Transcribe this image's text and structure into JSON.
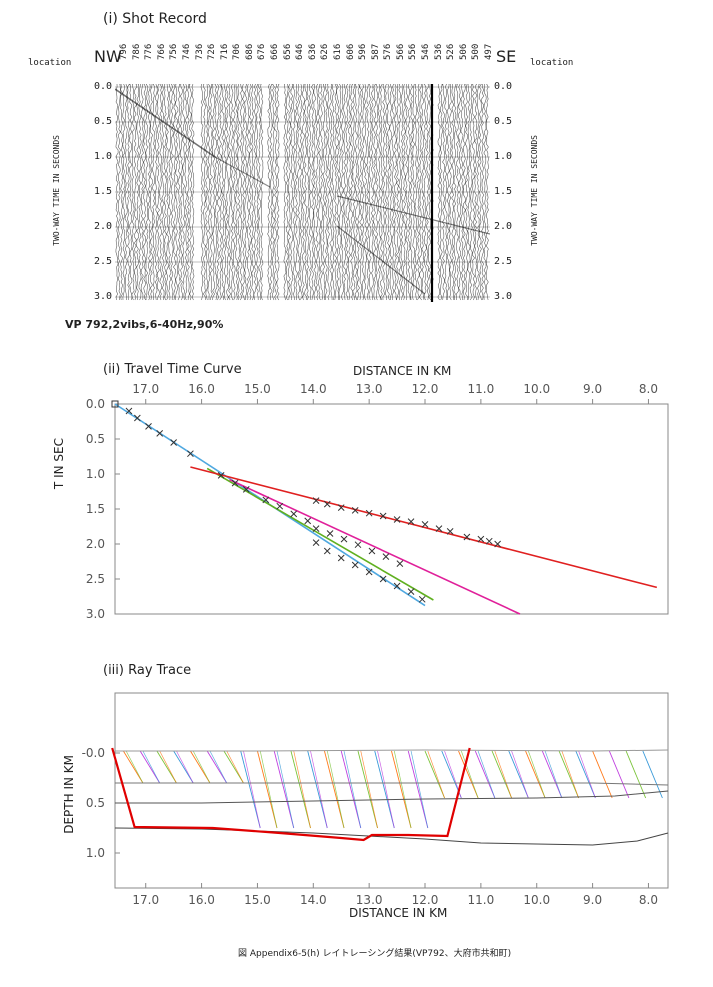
{
  "panel_i": {
    "title": "(i)  Shot Record",
    "left_dir": "NW",
    "right_dir": "SE",
    "left_location": "location",
    "right_location": "location",
    "y_axis_label_left": "TWO-WAY TIME IN SECONDS",
    "y_axis_label_right": "TWO-WAY TIME IN SECONDS",
    "caption": "VP  792,2vibs,6-40Hz,90%",
    "y_ticks": [
      "0.0",
      "0.5",
      "1.0",
      "1.5",
      "2.0",
      "2.5",
      "3.0"
    ],
    "location_labels": [
      "796",
      "786",
      "776",
      "766",
      "756",
      "746",
      "736",
      "726",
      "716",
      "706",
      "686",
      "676",
      "666",
      "656",
      "646",
      "636",
      "626",
      "616",
      "606",
      "596",
      "587",
      "576",
      "566",
      "556",
      "546",
      "536",
      "526",
      "506",
      "500",
      "497"
    ]
  },
  "chart_data": [
    {
      "type": "scatter",
      "title": "(ii)  Travel Time Curve",
      "xlabel": "DISTANCE  IN  KM",
      "ylabel": "T  IN  SEC",
      "x_ticks": [
        "17.0",
        "16.0",
        "15.0",
        "14.0",
        "13.0",
        "12.0",
        "11.0",
        "10.0",
        "9.0",
        "8.0"
      ],
      "y_ticks": [
        "0.0",
        "0.5",
        "1.0",
        "1.5",
        "2.0",
        "2.5",
        "3.0"
      ],
      "xlim": [
        17.55,
        7.65
      ],
      "ylim": [
        0,
        3.0
      ],
      "picks": {
        "marker": "x",
        "points": [
          [
            17.3,
            0.1
          ],
          [
            17.15,
            0.2
          ],
          [
            16.95,
            0.32
          ],
          [
            16.75,
            0.42
          ],
          [
            16.5,
            0.55
          ],
          [
            16.2,
            0.71
          ],
          [
            15.65,
            1.02
          ],
          [
            15.4,
            1.13
          ],
          [
            15.2,
            1.22
          ],
          [
            14.85,
            1.37
          ],
          [
            14.6,
            1.46
          ],
          [
            14.35,
            1.57
          ],
          [
            14.1,
            1.67
          ],
          [
            13.95,
            1.38
          ],
          [
            13.75,
            1.43
          ],
          [
            13.5,
            1.48
          ],
          [
            13.25,
            1.52
          ],
          [
            13.0,
            1.56
          ],
          [
            12.75,
            1.6
          ],
          [
            12.5,
            1.65
          ],
          [
            12.25,
            1.68
          ],
          [
            12.0,
            1.72
          ],
          [
            11.75,
            1.78
          ],
          [
            11.55,
            1.82
          ],
          [
            11.25,
            1.9
          ],
          [
            11.0,
            1.93
          ],
          [
            10.85,
            1.96
          ],
          [
            10.7,
            2.0
          ],
          [
            13.95,
            1.78
          ],
          [
            13.7,
            1.85
          ],
          [
            13.45,
            1.93
          ],
          [
            13.2,
            2.01
          ],
          [
            12.95,
            2.1
          ],
          [
            12.7,
            2.18
          ],
          [
            12.45,
            2.28
          ],
          [
            13.95,
            1.98
          ],
          [
            13.75,
            2.1
          ],
          [
            13.5,
            2.2
          ],
          [
            13.25,
            2.3
          ],
          [
            13.0,
            2.4
          ],
          [
            12.75,
            2.5
          ],
          [
            12.5,
            2.6
          ],
          [
            12.25,
            2.68
          ],
          [
            12.05,
            2.79
          ]
        ]
      },
      "series": [
        {
          "color": "#4fa8e0",
          "points": [
            [
              17.55,
              0.0
            ],
            [
              12.0,
              2.88
            ]
          ]
        },
        {
          "color": "#60b020",
          "points": [
            [
              15.9,
              0.92
            ],
            [
              11.85,
              2.8
            ]
          ]
        },
        {
          "color": "#e0209a",
          "points": [
            [
              15.5,
              1.08
            ],
            [
              10.3,
              3.0
            ]
          ]
        },
        {
          "color": "#e02020",
          "points": [
            [
              16.2,
              0.9
            ],
            [
              7.85,
              2.62
            ]
          ]
        }
      ]
    },
    {
      "type": "line",
      "title": "(iii)  Ray  Trace",
      "xlabel": "DISTANCE  IN  KM",
      "ylabel": "DEPTH  IN  KM",
      "x_ticks": [
        "17.0",
        "16.0",
        "15.0",
        "14.0",
        "13.0",
        "12.0",
        "11.0",
        "10.0",
        "9.0",
        "8.0"
      ],
      "y_ticks": [
        "-0.0",
        "0.5",
        "1.0"
      ],
      "xlim": [
        17.55,
        7.65
      ],
      "ylim": [
        -0.6,
        1.35
      ],
      "layers": [
        {
          "color": "#999999",
          "points": [
            [
              17.55,
              -0.02
            ],
            [
              15.0,
              -0.02
            ],
            [
              12.0,
              -0.03
            ],
            [
              9.0,
              -0.02
            ],
            [
              7.65,
              -0.03
            ]
          ]
        },
        {
          "color": "#777777",
          "points": [
            [
              17.55,
              0.3
            ],
            [
              15.0,
              0.3
            ],
            [
              12.0,
              0.3
            ],
            [
              9.0,
              0.3
            ],
            [
              7.65,
              0.32
            ]
          ]
        },
        {
          "color": "#555555",
          "points": [
            [
              17.55,
              0.5
            ],
            [
              16.0,
              0.5
            ],
            [
              14.0,
              0.48
            ],
            [
              12.0,
              0.46
            ],
            [
              10.0,
              0.45
            ],
            [
              8.6,
              0.43
            ],
            [
              7.65,
              0.38
            ]
          ]
        },
        {
          "color": "#444444",
          "points": [
            [
              17.55,
              0.75
            ],
            [
              16.0,
              0.76
            ],
            [
              14.0,
              0.8
            ],
            [
              12.0,
              0.86
            ],
            [
              11.0,
              0.9
            ],
            [
              9.0,
              0.92
            ],
            [
              8.2,
              0.88
            ],
            [
              7.65,
              0.8
            ]
          ]
        }
      ],
      "refractor": {
        "color": "#e00000",
        "points": [
          [
            17.6,
            -0.05
          ],
          [
            17.2,
            0.74
          ],
          [
            15.8,
            0.75
          ],
          [
            14.6,
            0.8
          ],
          [
            13.5,
            0.85
          ],
          [
            13.1,
            0.87
          ],
          [
            12.95,
            0.82
          ],
          [
            12.3,
            0.82
          ],
          [
            11.6,
            0.83
          ],
          [
            11.2,
            -0.05
          ]
        ]
      },
      "ray_colors": [
        "#ff7a1a",
        "#c040e0",
        "#7bc43a",
        "#3a9ad9"
      ]
    }
  ],
  "footer_caption": "図 Appendix6-5(h)  レイトレーシング結果(VP792、大府市共和町)"
}
